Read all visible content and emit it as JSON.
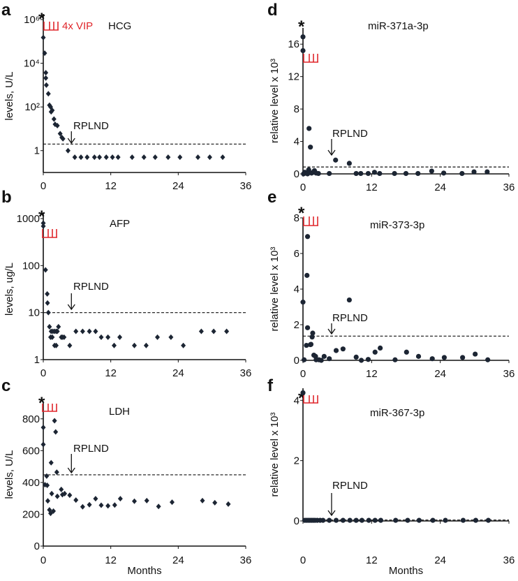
{
  "xlabel_bottom": "Months",
  "colors": {
    "points": "#1c2533",
    "treatment": "#e0262b",
    "axis": "#111111"
  },
  "chart_data": [
    {
      "panel": "a",
      "type": "scatter",
      "marker": "diamond",
      "title": "HCG",
      "ylabel": "levels, U/L",
      "yscale": "log",
      "ylim": [
        0.1,
        1000000
      ],
      "xlim": [
        0,
        36
      ],
      "xticks": [
        0,
        12,
        24,
        36
      ],
      "xtick_labels": [
        "0",
        "12",
        "24",
        "36"
      ],
      "yticks": [
        1,
        100,
        10000,
        1000000
      ],
      "ytick_labels": [
        "1",
        "10²",
        "10⁴",
        "10⁶"
      ],
      "threshold": 2,
      "annotation": "RPLND",
      "annotation_x": 5,
      "asterisk": "*",
      "treatment_label": "4x VIP",
      "x": [
        0,
        0.25,
        0.45,
        0.45,
        0.55,
        0.9,
        1.1,
        1.3,
        1.4,
        1.6,
        1.9,
        2.1,
        2.5,
        3,
        3.3,
        3.5,
        4.4,
        5.6,
        6.7,
        7.8,
        9.1,
        10,
        11.2,
        12.3,
        13.3,
        15.8,
        17.9,
        19.9,
        22.2,
        24.3,
        27.5,
        29.6,
        31.9
      ],
      "y": [
        150000,
        29000,
        3700,
        2100,
        1000,
        400,
        120,
        100,
        60,
        70,
        28,
        16,
        14,
        6,
        4,
        3.5,
        1,
        0.5,
        0.5,
        0.5,
        0.5,
        0.5,
        0.5,
        0.5,
        0.5,
        0.5,
        0.5,
        0.5,
        0.5,
        0.5,
        0.5,
        0.5,
        0.5
      ]
    },
    {
      "panel": "b",
      "type": "scatter",
      "marker": "diamond",
      "title": "AFP",
      "ylabel": "levels, ug/L",
      "yscale": "log",
      "ylim": [
        1,
        1000
      ],
      "xlim": [
        0,
        36
      ],
      "xticks": [
        0,
        12,
        24,
        36
      ],
      "xtick_labels": [
        "0",
        "12",
        "24",
        "36"
      ],
      "yticks": [
        1,
        10,
        100,
        1000
      ],
      "ytick_labels": [
        "1",
        "10",
        "100",
        "1000"
      ],
      "threshold": 10,
      "annotation": "RPLND",
      "annotation_x": 5,
      "asterisk": "*",
      "x": [
        0,
        0,
        0.4,
        0.7,
        0.75,
        0.9,
        1.1,
        1.3,
        1.4,
        1.6,
        1.7,
        2.0,
        2.0,
        2.3,
        2.3,
        2.5,
        2.7,
        3.2,
        3.4,
        3.7,
        4.7,
        5.8,
        7,
        8.2,
        9.3,
        10.3,
        11.5,
        12.6,
        13.6,
        16.2,
        18.3,
        20.3,
        22.7,
        24.9,
        28.1,
        30.3,
        32.6
      ],
      "y": [
        800,
        690,
        81,
        25,
        16,
        10,
        5,
        3,
        4,
        3,
        4,
        4,
        2,
        2,
        4,
        4,
        5,
        3,
        3,
        3,
        2,
        4,
        4,
        4,
        4,
        3,
        3,
        2,
        3,
        2,
        2,
        3,
        3,
        2,
        4,
        4,
        4
      ]
    },
    {
      "panel": "c",
      "type": "scatter",
      "marker": "diamond",
      "title": "LDH",
      "ylabel": "levels, U/L",
      "xlabel": "Months",
      "yscale": "linear",
      "ylim": [
        0,
        900
      ],
      "xlim": [
        0,
        36
      ],
      "xticks": [
        0,
        12,
        24,
        36
      ],
      "xtick_labels": [
        "0",
        "12",
        "24",
        "36"
      ],
      "yticks": [
        0,
        200,
        400,
        600,
        800
      ],
      "ytick_labels": [
        "0",
        "200",
        "400",
        "600",
        "800"
      ],
      "threshold": 448,
      "annotation": "RPLND",
      "annotation_x": 5,
      "asterisk": "*",
      "x": [
        0,
        0,
        0.3,
        0.6,
        0.7,
        0.8,
        1.1,
        1.3,
        1.4,
        1.5,
        1.8,
        2.0,
        2.2,
        2.4,
        2.5,
        3.2,
        3.4,
        3.8,
        4.7,
        5.8,
        7,
        8.2,
        9.3,
        10.3,
        11.5,
        12.7,
        13.7,
        16.2,
        18.4,
        20.5,
        22.9,
        28.3,
        30.5,
        32.9
      ],
      "y": [
        746,
        639,
        386,
        440,
        382,
        284,
        228,
        206,
        524,
        330,
        220,
        788,
        718,
        465,
        313,
        356,
        323,
        330,
        320,
        289,
        247,
        260,
        298,
        257,
        253,
        258,
        298,
        282,
        286,
        249,
        276,
        286,
        273,
        264
      ]
    },
    {
      "panel": "d",
      "type": "scatter",
      "marker": "circle",
      "title": "miR-371a-3p",
      "ylabel": "relative level x 10³",
      "yscale": "linear",
      "ylim": [
        0,
        18
      ],
      "xlim": [
        0,
        36
      ],
      "xticks": [
        0,
        12,
        24,
        36
      ],
      "xtick_labels": [
        "0",
        "12",
        "24",
        "36"
      ],
      "yticks": [
        0,
        4,
        8,
        12,
        16
      ],
      "ytick_labels": [
        "0",
        "4",
        "8",
        "12",
        "16"
      ],
      "threshold": 0.85,
      "annotation": "RPLND",
      "annotation_x": 5,
      "asterisk": "*",
      "x": [
        0,
        0,
        1.06,
        1.3,
        5.7,
        8.1,
        0.1,
        0.3,
        0.5,
        0.8,
        1.0,
        1.5,
        1.8,
        2.0,
        2.3,
        2.7,
        4.6,
        9.3,
        10.1,
        11.4,
        12.5,
        13.4,
        16,
        18,
        20.1,
        22.5,
        24.6,
        27.8,
        29.9,
        32.2
      ],
      "y": [
        16.9,
        15.2,
        5.6,
        3.3,
        1.7,
        1.3,
        0,
        0.2,
        0.1,
        0,
        0.5,
        0.1,
        0.2,
        0.4,
        0.1,
        0.05,
        0.05,
        0.05,
        0.05,
        0.05,
        0.2,
        0.05,
        0.05,
        0.05,
        0.05,
        0.35,
        0.1,
        0.05,
        0.25,
        0.25
      ]
    },
    {
      "panel": "e",
      "type": "scatter",
      "marker": "circle",
      "title": "miR-373-3p",
      "ylabel": "relative level x 10³",
      "yscale": "linear",
      "ylim": [
        0,
        8
      ],
      "xlim": [
        0,
        36
      ],
      "xticks": [
        0,
        12,
        24,
        36
      ],
      "xtick_labels": [
        "0",
        "12",
        "24",
        "36"
      ],
      "yticks": [
        0,
        2,
        4,
        6,
        8
      ],
      "ytick_labels": [
        "0",
        "2",
        "4",
        "6",
        "8"
      ],
      "threshold": 1.36,
      "annotation": "RPLND",
      "annotation_x": 5,
      "asterisk": "*",
      "x": [
        0,
        0.2,
        0.6,
        0.7,
        0.8,
        0.8,
        1.3,
        1.4,
        1.6,
        1.7,
        1.9,
        2.2,
        2.3,
        2.8,
        3.2,
        3.7,
        4.6,
        5.8,
        7,
        8.1,
        9.3,
        10.2,
        11.4,
        12.6,
        13.5,
        16.1,
        18.1,
        20.2,
        22.6,
        24.7,
        27.9,
        30.1,
        32.3
      ],
      "y": [
        3.27,
        0.03,
        0.84,
        4.77,
        6.95,
        1.83,
        0.88,
        0.9,
        1.31,
        1.53,
        0.29,
        0.22,
        0.03,
        0.03,
        0,
        0.22,
        0.09,
        0.55,
        0.64,
        3.39,
        0.18,
        0,
        0.05,
        0.46,
        0.69,
        0.03,
        0.46,
        0.22,
        0.09,
        0.16,
        0.16,
        0.35,
        0.03
      ]
    },
    {
      "panel": "f",
      "type": "scatter",
      "marker": "circle",
      "title": "miR-367-3p",
      "ylabel": "relative level x 10³",
      "xlabel": "Months",
      "yscale": "linear",
      "ylim": [
        0,
        4.4
      ],
      "xlim": [
        0,
        36
      ],
      "xticks": [
        0,
        12,
        24,
        36
      ],
      "xtick_labels": [
        "0",
        "12",
        "24",
        "36"
      ],
      "yticks": [
        0,
        2,
        4
      ],
      "ytick_labels": [
        "0",
        "2",
        "4"
      ],
      "threshold": 0.03,
      "annotation": "RPLND",
      "annotation_x": 5,
      "asterisk": "*",
      "x": [
        0,
        0.3,
        0.6,
        0.9,
        1.2,
        1.5,
        1.8,
        2.1,
        2.5,
        3,
        3.5,
        4.6,
        5.8,
        7,
        8.2,
        9.3,
        10.3,
        11.5,
        12.6,
        13.6,
        16.2,
        18.3,
        20.3,
        22.7,
        24.9,
        28,
        30.2,
        32.4
      ],
      "y": [
        4.25,
        0.02,
        0.02,
        0.02,
        0.02,
        0.02,
        0.02,
        0.02,
        0.02,
        0.02,
        0.02,
        0.02,
        0.02,
        0.02,
        0.02,
        0.02,
        0.02,
        0.02,
        0.02,
        0.02,
        0.02,
        0.02,
        0.02,
        0.02,
        0.02,
        0.02,
        0.02,
        0.02
      ]
    }
  ]
}
